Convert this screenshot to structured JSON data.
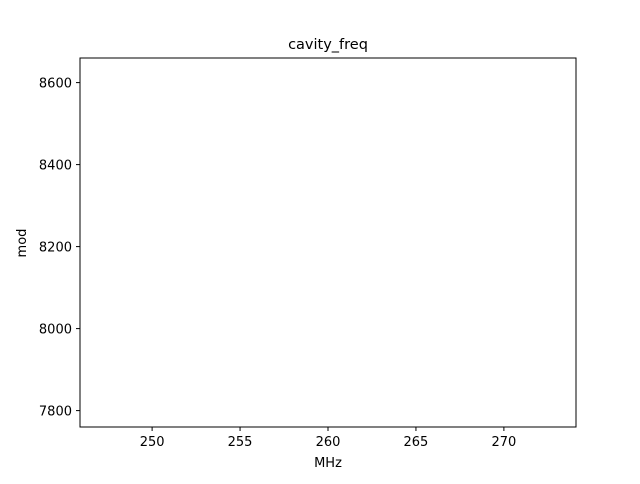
{
  "chart_data": {
    "type": "line",
    "title": "cavity_freq",
    "xlabel": "MHz",
    "ylabel": "mod",
    "xlim": [
      245.9,
      274.1
    ],
    "ylim": [
      7760,
      8660
    ],
    "xticks": [
      250,
      255,
      260,
      265,
      270
    ],
    "xtick_labels": [
      "250",
      "255",
      "260",
      "265",
      "270"
    ],
    "yticks": [
      7800,
      8000,
      8200,
      8400,
      8600
    ],
    "ytick_labels": [
      "7800",
      "8000",
      "8200",
      "8400",
      "8600"
    ],
    "grid": false,
    "series": []
  }
}
